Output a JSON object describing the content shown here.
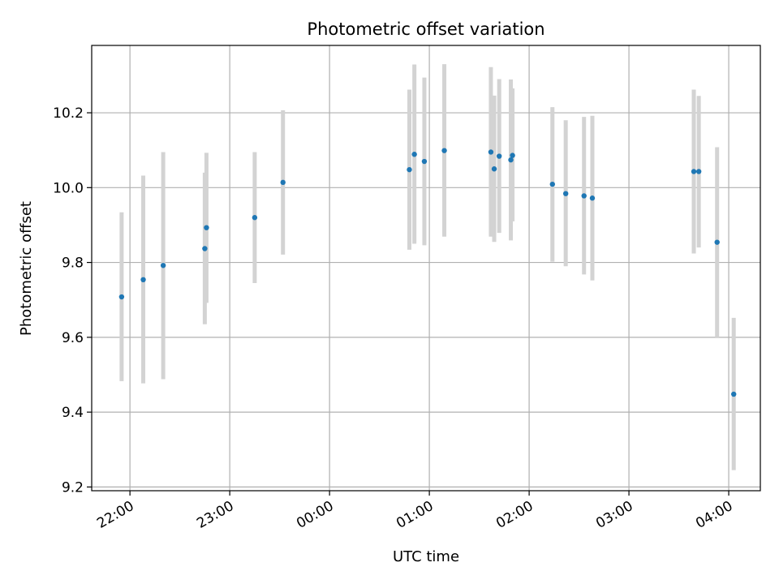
{
  "chart_data": {
    "type": "scatter",
    "title": "Photometric offset variation",
    "xlabel": "UTC time",
    "ylabel": "Photometric offset",
    "x_ticks": [
      "22:00",
      "23:00",
      "00:00",
      "01:00",
      "02:00",
      "03:00",
      "04:00"
    ],
    "y_ticks": [
      "9.2",
      "9.4",
      "9.6",
      "9.8",
      "10.0",
      "10.2"
    ],
    "xlim": [
      "21:37",
      "04:19"
    ],
    "ylim": [
      9.19,
      10.38
    ],
    "grid": true,
    "marker_color": "#1f77b4",
    "errorbar_color": "#d3d3d3",
    "points": [
      {
        "time": "21:55",
        "y": 9.708,
        "err_low": 9.483,
        "err_high": 9.934
      },
      {
        "time": "22:08",
        "y": 9.754,
        "err_low": 9.477,
        "err_high": 10.032
      },
      {
        "time": "22:20",
        "y": 9.792,
        "err_low": 9.488,
        "err_high": 10.095
      },
      {
        "time": "22:45",
        "y": 9.837,
        "err_low": 9.635,
        "err_high": 10.04
      },
      {
        "time": "22:46",
        "y": 9.893,
        "err_low": 9.692,
        "err_high": 10.093
      },
      {
        "time": "23:15",
        "y": 9.92,
        "err_low": 9.745,
        "err_high": 10.095
      },
      {
        "time": "23:32",
        "y": 10.014,
        "err_low": 9.821,
        "err_high": 10.207
      },
      {
        "time": "00:48",
        "y": 10.048,
        "err_low": 9.834,
        "err_high": 10.262
      },
      {
        "time": "00:51",
        "y": 10.089,
        "err_low": 9.85,
        "err_high": 10.329
      },
      {
        "time": "00:57",
        "y": 10.07,
        "err_low": 9.846,
        "err_high": 10.294
      },
      {
        "time": "01:09",
        "y": 10.099,
        "err_low": 9.869,
        "err_high": 10.33
      },
      {
        "time": "01:37",
        "y": 10.095,
        "err_low": 9.869,
        "err_high": 10.322
      },
      {
        "time": "01:39",
        "y": 10.05,
        "err_low": 9.855,
        "err_high": 10.246
      },
      {
        "time": "01:42",
        "y": 10.084,
        "err_low": 9.879,
        "err_high": 10.29
      },
      {
        "time": "01:49",
        "y": 10.074,
        "err_low": 9.859,
        "err_high": 10.289
      },
      {
        "time": "01:50",
        "y": 10.086,
        "err_low": 9.91,
        "err_high": 10.265
      },
      {
        "time": "02:14",
        "y": 10.009,
        "err_low": 9.802,
        "err_high": 10.215
      },
      {
        "time": "02:22",
        "y": 9.984,
        "err_low": 9.79,
        "err_high": 10.18
      },
      {
        "time": "02:33",
        "y": 9.978,
        "err_low": 9.768,
        "err_high": 10.189
      },
      {
        "time": "02:38",
        "y": 9.972,
        "err_low": 9.752,
        "err_high": 10.192
      },
      {
        "time": "03:39",
        "y": 10.043,
        "err_low": 9.824,
        "err_high": 10.262
      },
      {
        "time": "03:42",
        "y": 10.043,
        "err_low": 9.84,
        "err_high": 10.245
      },
      {
        "time": "03:53",
        "y": 9.854,
        "err_low": 9.6,
        "err_high": 10.108
      },
      {
        "time": "04:03",
        "y": 9.448,
        "err_low": 9.245,
        "err_high": 9.652
      }
    ]
  }
}
